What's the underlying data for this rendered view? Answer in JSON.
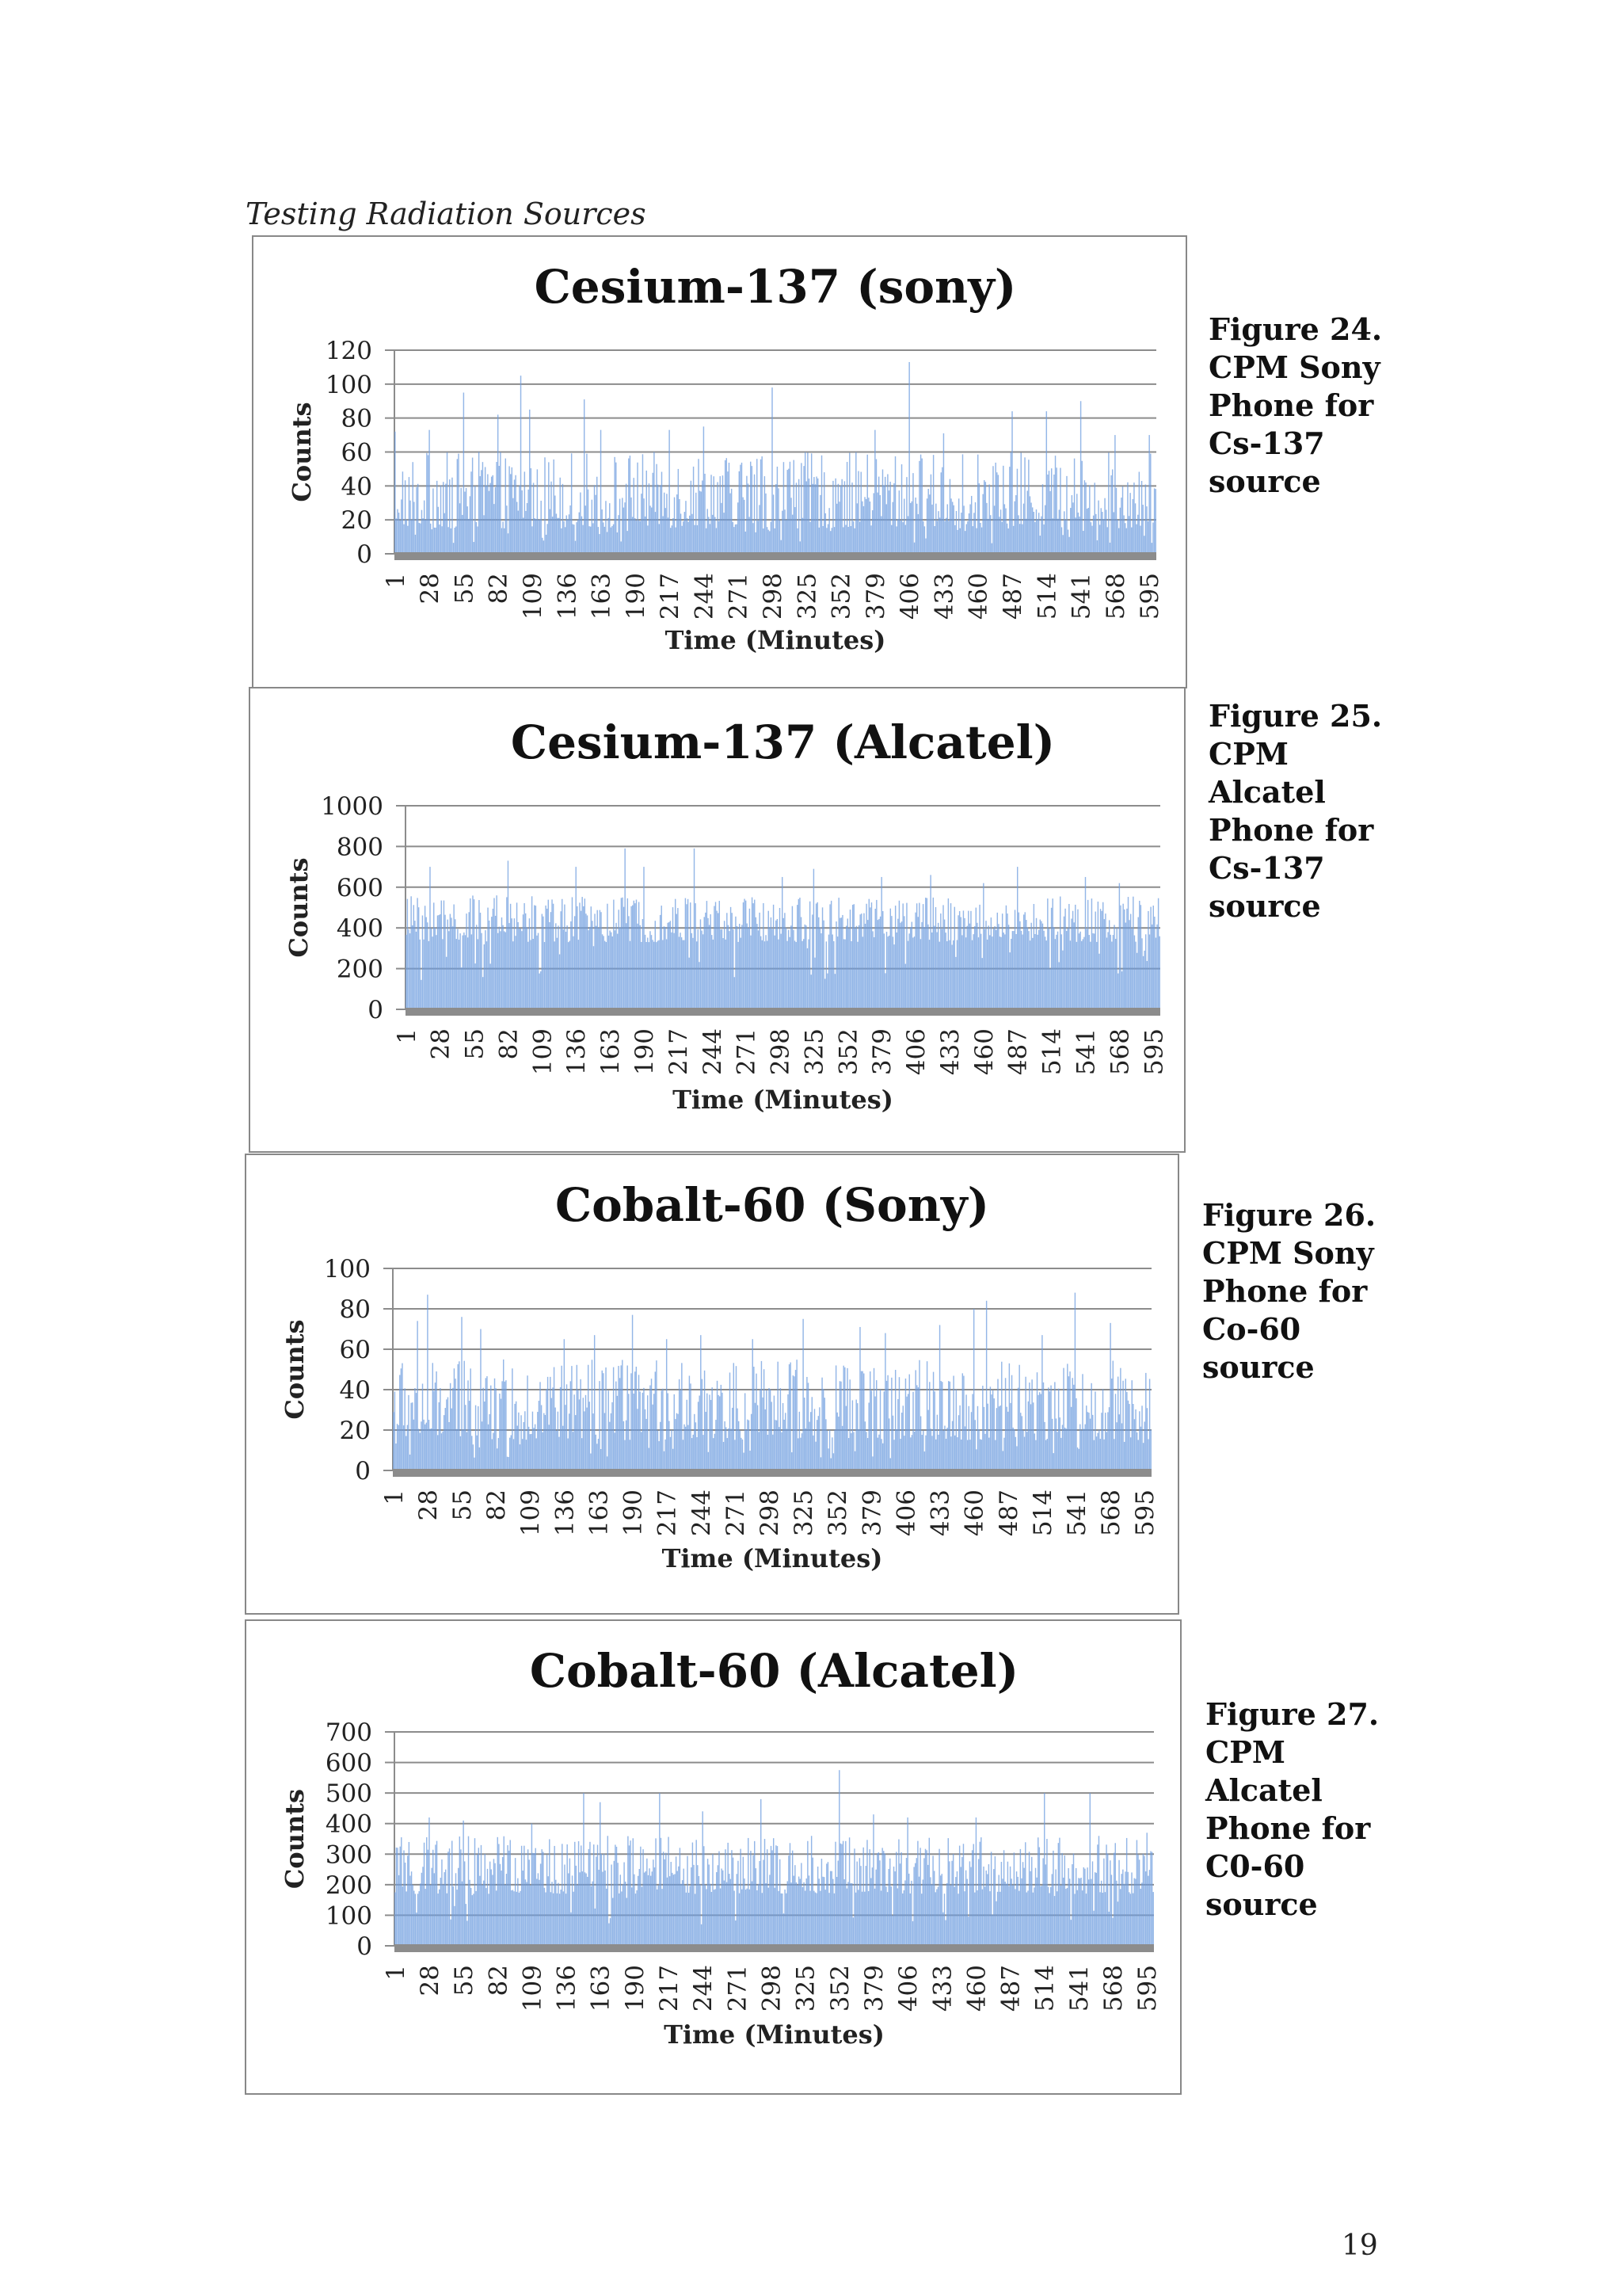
{
  "page": {
    "section_heading": "Testing Radiation Sources",
    "page_number": "19"
  },
  "style": {
    "bar_color": "#6f9edf",
    "grid_color": "#8c8c8c",
    "baseline_color": "#8c8c8c"
  },
  "chart_data": [
    {
      "id": "cs137-sony",
      "type": "bar",
      "title": "Cesium-137 (sony)",
      "xlabel": "Time (Minutes)",
      "ylabel": "Counts",
      "ylim": [
        0,
        120
      ],
      "yticks": [
        0,
        20,
        40,
        60,
        80,
        100,
        120
      ],
      "x_tick_labels": [
        "1",
        "28",
        "55",
        "82",
        "109",
        "136",
        "163",
        "190",
        "217",
        "244",
        "271",
        "298",
        "325",
        "352",
        "379",
        "406",
        "433",
        "460",
        "487",
        "514",
        "541",
        "568",
        "595"
      ],
      "n_points": 600,
      "typical_range": [
        15,
        60
      ],
      "peaks": [
        [
          1,
          72
        ],
        [
          28,
          73
        ],
        [
          55,
          95
        ],
        [
          82,
          82
        ],
        [
          100,
          105
        ],
        [
          107,
          85
        ],
        [
          150,
          91
        ],
        [
          163,
          73
        ],
        [
          217,
          73
        ],
        [
          244,
          75
        ],
        [
          298,
          98
        ],
        [
          379,
          73
        ],
        [
          406,
          113
        ],
        [
          433,
          71
        ],
        [
          487,
          84
        ],
        [
          514,
          84
        ],
        [
          541,
          90
        ],
        [
          568,
          70
        ],
        [
          595,
          70
        ]
      ],
      "grid": true,
      "legend": "none"
    },
    {
      "id": "cs137-alcatel",
      "type": "bar",
      "title": "Cesium-137 (Alcatel)",
      "xlabel": "Time (Minutes)",
      "ylabel": "Counts",
      "ylim": [
        0,
        1000
      ],
      "yticks": [
        0,
        200,
        400,
        600,
        800,
        1000
      ],
      "x_tick_labels": [
        "1",
        "28",
        "55",
        "82",
        "109",
        "136",
        "163",
        "190",
        "217",
        "244",
        "271",
        "298",
        "325",
        "352",
        "379",
        "406",
        "433",
        "460",
        "487",
        "514",
        "541",
        "568",
        "595"
      ],
      "n_points": 600,
      "typical_range": [
        330,
        560
      ],
      "peaks": [
        [
          20,
          700
        ],
        [
          82,
          730
        ],
        [
          136,
          700
        ],
        [
          175,
          790
        ],
        [
          190,
          700
        ],
        [
          230,
          790
        ],
        [
          300,
          650
        ],
        [
          325,
          690
        ],
        [
          379,
          650
        ],
        [
          418,
          660
        ],
        [
          460,
          620
        ],
        [
          487,
          700
        ],
        [
          541,
          650
        ],
        [
          568,
          620
        ]
      ],
      "grid": true,
      "legend": "none"
    },
    {
      "id": "co60-sony",
      "type": "bar",
      "title": "Cobalt-60 (Sony)",
      "xlabel": "Time (Minutes)",
      "ylabel": "Counts",
      "ylim": [
        0,
        100
      ],
      "yticks": [
        0,
        20,
        40,
        60,
        80,
        100
      ],
      "x_tick_labels": [
        "1",
        "28",
        "55",
        "82",
        "109",
        "136",
        "163",
        "190",
        "217",
        "244",
        "271",
        "298",
        "325",
        "352",
        "379",
        "406",
        "433",
        "460",
        "487",
        "514",
        "541",
        "568",
        "595"
      ],
      "n_points": 600,
      "typical_range": [
        15,
        55
      ],
      "peaks": [
        [
          20,
          74
        ],
        [
          28,
          87
        ],
        [
          55,
          76
        ],
        [
          70,
          70
        ],
        [
          136,
          65
        ],
        [
          160,
          67
        ],
        [
          190,
          77
        ],
        [
          217,
          65
        ],
        [
          244,
          67
        ],
        [
          285,
          65
        ],
        [
          325,
          75
        ],
        [
          370,
          71
        ],
        [
          390,
          68
        ],
        [
          433,
          72
        ],
        [
          460,
          80
        ],
        [
          470,
          84
        ],
        [
          514,
          67
        ],
        [
          540,
          88
        ],
        [
          568,
          73
        ]
      ],
      "grid": true,
      "legend": "none"
    },
    {
      "id": "co60-alcatel",
      "type": "bar",
      "title": "Cobalt-60 (Alcatel)",
      "xlabel": "Time (Minutes)",
      "ylabel": "Counts",
      "ylim": [
        0,
        700
      ],
      "yticks": [
        0,
        100,
        200,
        300,
        400,
        500,
        600,
        700
      ],
      "x_tick_labels": [
        "1",
        "28",
        "55",
        "82",
        "109",
        "136",
        "163",
        "190",
        "217",
        "244",
        "271",
        "298",
        "325",
        "352",
        "379",
        "406",
        "433",
        "460",
        "487",
        "514",
        "541",
        "568",
        "595"
      ],
      "n_points": 600,
      "typical_range": [
        170,
        360
      ],
      "peaks": [
        [
          28,
          420
        ],
        [
          55,
          410
        ],
        [
          109,
          400
        ],
        [
          150,
          500
        ],
        [
          163,
          470
        ],
        [
          210,
          500
        ],
        [
          244,
          440
        ],
        [
          290,
          480
        ],
        [
          352,
          575
        ],
        [
          379,
          430
        ],
        [
          406,
          420
        ],
        [
          460,
          420
        ],
        [
          514,
          500
        ],
        [
          550,
          500
        ],
        [
          595,
          370
        ]
      ],
      "grid": true,
      "legend": "none"
    }
  ],
  "captions": [
    {
      "text": "Figure 24.\nCPM Sony\nPhone for\nCs-137\nsource"
    },
    {
      "text": "Figure 25.\nCPM\nAlcatel\nPhone for\nCs-137\nsource"
    },
    {
      "text": "Figure 26.\nCPM Sony\nPhone for\nCo-60\nsource"
    },
    {
      "text": "Figure 27.\nCPM\nAlcatel\nPhone for\nC0-60\nsource"
    }
  ]
}
